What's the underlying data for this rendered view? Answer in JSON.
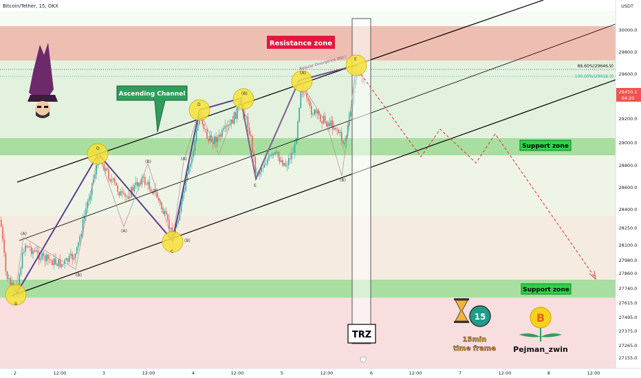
{
  "header": {
    "title": "Bitcoin/Tether, 15, OKX",
    "currency": "USDT"
  },
  "chart_data": {
    "type": "candlestick",
    "y_ticks": [
      "30000.0",
      "29800.0",
      "29600.0",
      "29450.1",
      "29200.0",
      "29000.0",
      "28800.0",
      "28600.0",
      "28400.0",
      "28250.0",
      "28100.0",
      "27980.0",
      "27860.0",
      "27740.0",
      "27615.0",
      "27495.0",
      "27375.0",
      "27265.0",
      "27155.0"
    ],
    "x_ticks": [
      "2",
      "12:00",
      "3",
      "12:00",
      "4",
      "12:00",
      "5",
      "12:00",
      "6",
      "12:00",
      "7",
      "12:00",
      "8",
      "12:00"
    ],
    "price_badge": {
      "price": "29450.1",
      "countdown": "04:20",
      "color": "#ef5350"
    },
    "fib_levels": [
      {
        "label": "86.60%(29646.9)",
        "color": "#131722"
      },
      {
        "label": "100.00%(29618.3)",
        "color": "#26a69a"
      }
    ],
    "zones": [
      {
        "name": "resistance",
        "label": "Resistance zone",
        "range": [
          29760,
          30040
        ],
        "color": "#e57373"
      },
      {
        "name": "support-upper",
        "label": "Support zone",
        "range": [
          28920,
          29050
        ],
        "color": "#66bb6a"
      },
      {
        "name": "support-lower",
        "label": "Support zone",
        "range": [
          27705,
          27800
        ],
        "color": "#66bb6a"
      }
    ],
    "annotations": {
      "channel": "Ascending Channel",
      "divergence": "Regular Divergence (RD-)",
      "trz": "TRZ",
      "wave_labels": [
        "(A)",
        "(B)",
        "(A)",
        "(B)",
        "(A)",
        "(B)",
        "(A)"
      ],
      "points": [
        "D",
        "C",
        "E",
        "(B)",
        "(D)",
        "(C)",
        "(E)"
      ]
    },
    "bullish_color": "#26a69a",
    "bearish_color": "#ef5350"
  },
  "branding": {
    "timer_number": "15",
    "timer_line1": "15min",
    "timer_line2": "time frame",
    "author": "Pejman_zwin"
  }
}
